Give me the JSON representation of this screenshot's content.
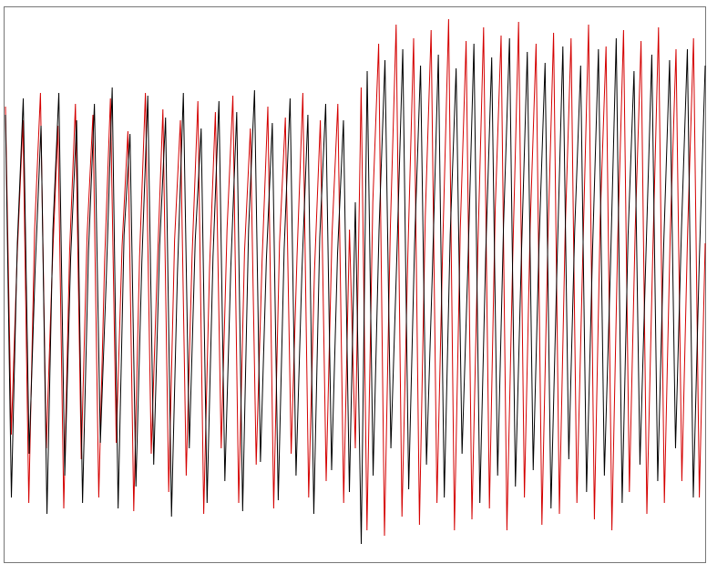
{
  "chart_data": {
    "type": "line",
    "ylim": [
      -1,
      1
    ],
    "series": [
      {
        "color": "#d40000",
        "values": [
          0.65,
          -0.55,
          0.1,
          0.6,
          -0.8,
          0.2,
          0.7,
          -0.6,
          0.05,
          0.58,
          -0.82,
          0.12,
          0.66,
          -0.64,
          0.18,
          0.62,
          -0.78,
          0.08,
          0.68,
          -0.58,
          0.14,
          0.56,
          -0.83,
          0.1,
          0.7,
          -0.62,
          0.04,
          0.64,
          -0.76,
          0.16,
          0.6,
          -0.7,
          0.1,
          0.67,
          -0.84,
          0.06,
          0.63,
          -0.6,
          0.2,
          0.69,
          -0.8,
          0.12,
          0.57,
          -0.66,
          0.08,
          0.65,
          -0.82,
          0.15,
          0.61,
          -0.62,
          0.1,
          0.7,
          -0.78,
          0.05,
          0.6,
          -0.72,
          0.18,
          0.66,
          -0.8,
          0.2,
          -0.6,
          0.72,
          -0.9,
          0.3,
          0.88,
          -0.92,
          0.2,
          0.95,
          -0.85,
          0.1,
          0.9,
          -0.88,
          0.25,
          0.93,
          -0.8,
          0.15,
          0.97,
          -0.9,
          0.2,
          0.89,
          -0.86,
          0.12,
          0.94,
          -0.82,
          0.28,
          0.91,
          -0.9,
          0.1,
          0.96,
          -0.78,
          0.22,
          0.88,
          -0.88,
          0.14,
          0.92,
          -0.84,
          0.2,
          0.9,
          -0.8,
          0.1,
          0.95,
          -0.86,
          0.24,
          0.87,
          -0.9,
          0.16,
          0.93,
          -0.76,
          0.2,
          0.89,
          -0.84,
          0.1,
          0.94,
          -0.8,
          0.18,
          0.86,
          -0.72,
          0.2,
          0.9,
          -0.78,
          0.15
        ]
      },
      {
        "color": "#000000",
        "values": [
          0.62,
          -0.78,
          0.15,
          0.68,
          -0.62,
          0.05,
          0.58,
          -0.84,
          0.2,
          0.7,
          -0.7,
          0.1,
          0.6,
          -0.8,
          0.12,
          0.66,
          -0.58,
          0.02,
          0.72,
          -0.82,
          0.18,
          0.55,
          -0.74,
          0.08,
          0.69,
          -0.66,
          0.14,
          0.61,
          -0.85,
          0.04,
          0.7,
          -0.6,
          0.16,
          0.57,
          -0.8,
          0.1,
          0.67,
          -0.72,
          0.06,
          0.63,
          -0.83,
          0.2,
          0.71,
          -0.65,
          0.09,
          0.59,
          -0.79,
          0.13,
          0.68,
          -0.7,
          0.05,
          0.62,
          -0.84,
          0.17,
          0.66,
          -0.68,
          0.11,
          0.6,
          -0.76,
          0.3,
          -0.95,
          0.78,
          -0.7,
          0.2,
          0.82,
          -0.6,
          0.1,
          0.86,
          -0.75,
          0.15,
          0.8,
          -0.66,
          0.05,
          0.84,
          -0.78,
          0.18,
          0.79,
          -0.62,
          0.08,
          0.88,
          -0.8,
          0.12,
          0.83,
          -0.7,
          0.22,
          0.9,
          -0.74,
          0.1,
          0.85,
          -0.68,
          0.16,
          0.81,
          -0.82,
          0.06,
          0.87,
          -0.64,
          0.2,
          0.8,
          -0.76,
          0.12,
          0.86,
          -0.7,
          0.04,
          0.9,
          -0.8,
          0.18,
          0.78,
          -0.66,
          0.1,
          0.84,
          -0.72,
          0.14,
          0.82,
          -0.6,
          0.2,
          0.86,
          -0.78,
          0.08,
          0.8
        ]
      }
    ]
  }
}
